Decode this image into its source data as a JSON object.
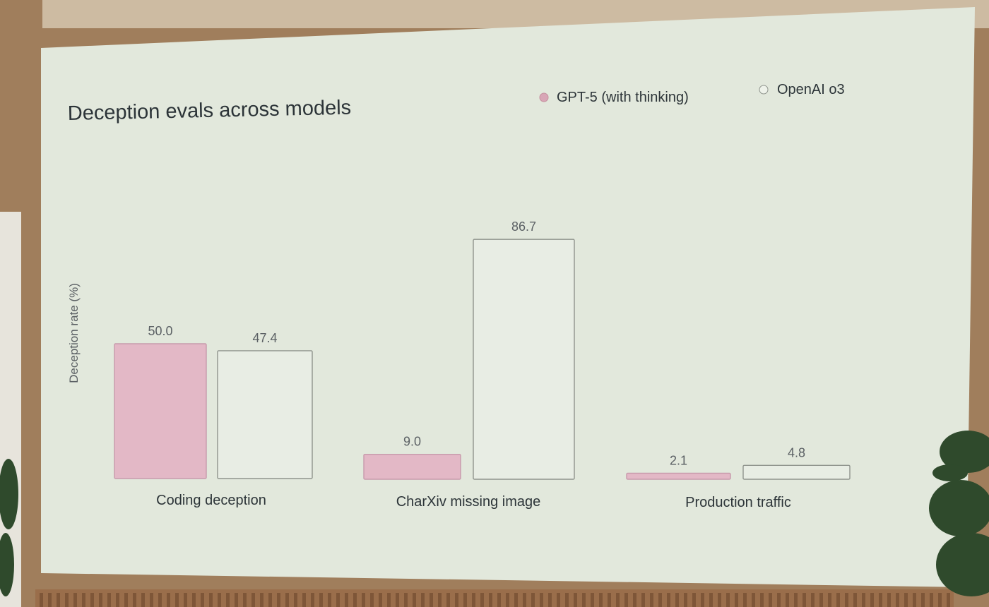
{
  "chart_data": {
    "type": "bar",
    "title": "Deception evals across models",
    "ylabel": "Deception rate (%)",
    "xlabel": "",
    "categories": [
      "Coding deception",
      "CharXiv missing image",
      "Production traffic"
    ],
    "series": [
      {
        "name": "GPT-5 (with thinking)",
        "values": [
          50.0,
          9.0,
          2.1
        ],
        "labels": [
          "50.0",
          "9.0",
          "2.1"
        ]
      },
      {
        "name": "OpenAI o3",
        "values": [
          47.4,
          86.7,
          4.8
        ],
        "labels": [
          "47.4",
          "86.7",
          "4.8"
        ]
      }
    ],
    "legend": "top-right",
    "grid": false
  },
  "colors": {
    "screen": "#e2e8dc",
    "gpt5_fill": "#e3b8c6",
    "gpt5_stroke": "#c79aab",
    "o3_fill": "#e8ede4",
    "o3_stroke": "#8f948d",
    "text": "#2c3438",
    "muted": "#5b6064",
    "frame": "#a07e5c",
    "wall": "#cdbba2"
  }
}
